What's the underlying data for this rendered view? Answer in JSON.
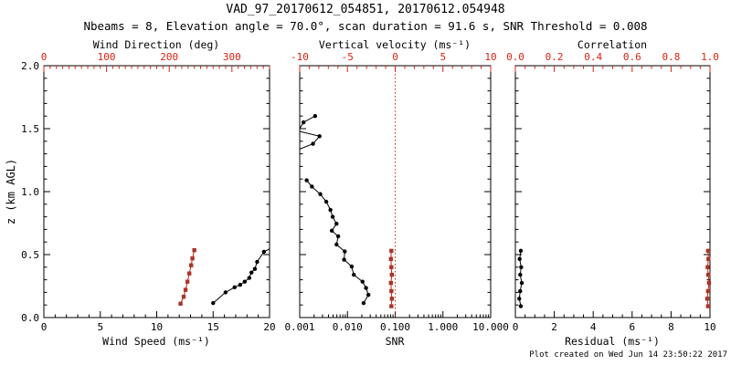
{
  "header": {
    "title": "VAD_97_20170612_054851, 20170612.054948",
    "subtitle": "Nbeams = 8, Elevation angle = 70.0°, scan duration = 91.6 s, SNR Threshold = 0.008"
  },
  "footer": {
    "created_text": "Plot created on Wed Jun 14 23:50:22 2017"
  },
  "colors": {
    "background": "#ffffff",
    "axis_black": "#000000",
    "axis_red": "#dd2211",
    "line_red": "#cc2211",
    "marker_red": "#a8352a",
    "line_black": "#000000"
  },
  "chart_data": {
    "type": "line",
    "ylabel": "z (km AGL)",
    "ylim": [
      0,
      2
    ],
    "y_majors": [
      0.0,
      0.5,
      1.0,
      1.5,
      2.0
    ],
    "y_tick_labels": [
      "0.0",
      "0.5",
      "1.0",
      "1.5",
      "2.0"
    ],
    "y_minor_step": 0.1,
    "panels": [
      {
        "name": "wind-panel",
        "bottom_axis": {
          "label": "Wind Speed (ms⁻¹)",
          "scale": "linear",
          "min": 0,
          "max": 20,
          "majors": [
            0,
            5,
            10,
            15,
            20
          ],
          "tick_labels": [
            "0",
            "5",
            "10",
            "15",
            "20"
          ],
          "minor_step": 1,
          "color": "black"
        },
        "top_axis": {
          "label": "Wind Direction (deg)",
          "scale": "linear",
          "min": 0,
          "max": 360,
          "majors": [
            0,
            100,
            200,
            300
          ],
          "tick_labels": [
            "0",
            "100",
            "200",
            "300"
          ],
          "minor_step": 10,
          "color": "red"
        },
        "series": [
          {
            "name": "wind-speed",
            "axis": "bottom",
            "color": "black",
            "marker": "circle",
            "points": [
              [
                15.0,
                0.115
              ],
              [
                16.1,
                0.2
              ],
              [
                16.9,
                0.24
              ],
              [
                17.4,
                0.26
              ],
              [
                17.8,
                0.285
              ],
              [
                18.2,
                0.315
              ],
              [
                18.4,
                0.357
              ],
              [
                18.7,
                0.386
              ],
              [
                18.9,
                0.442
              ],
              [
                19.5,
                0.522
              ],
              [
                20.0,
                0.546,
                0
              ]
            ]
          },
          {
            "name": "wind-direction",
            "axis": "top",
            "color": "red",
            "marker": "square",
            "points": [
              [
                218,
                0.11
              ],
              [
                223,
                0.165
              ],
              [
                226,
                0.22
              ],
              [
                229,
                0.285
              ],
              [
                232,
                0.35
              ],
              [
                235,
                0.415
              ],
              [
                237,
                0.47
              ],
              [
                240,
                0.535
              ]
            ]
          }
        ]
      },
      {
        "name": "snr-panel",
        "bottom_axis": {
          "label": "SNR",
          "scale": "log",
          "min": 0.001,
          "max": 10,
          "majors": [
            0.001,
            0.01,
            0.1,
            1,
            10
          ],
          "tick_labels": [
            "0.001",
            "0.010",
            "0.100",
            "1.000",
            "10.000"
          ],
          "color": "black"
        },
        "top_axis": {
          "label": "Vertical velocity (ms⁻¹)",
          "scale": "linear",
          "min": -10,
          "max": 10,
          "majors": [
            -10,
            -5,
            0,
            5,
            10
          ],
          "tick_labels": [
            "-10",
            "-5",
            "0",
            "5",
            "10"
          ],
          "minor_step": 1,
          "color": "red"
        },
        "ref_line": {
          "axis": "top",
          "value": 0,
          "style": "dotted",
          "color": "red"
        },
        "series": [
          {
            "name": "snr-upper-a",
            "axis": "bottom",
            "color": "black",
            "marker": "circle",
            "points": [
              [
                0.0021,
                1.6
              ],
              [
                0.0012,
                1.55
              ],
              [
                0.001,
                1.5,
                0
              ]
            ]
          },
          {
            "name": "snr-upper-b",
            "axis": "bottom",
            "color": "black",
            "marker": "circle",
            "points": [
              [
                0.001,
                1.478,
                0
              ],
              [
                0.0026,
                1.44
              ],
              [
                0.0019,
                1.38
              ],
              [
                0.001,
                1.338,
                0
              ]
            ]
          },
          {
            "name": "snr-profile",
            "axis": "bottom",
            "color": "black",
            "marker": "circle",
            "points": [
              [
                0.0014,
                1.09
              ],
              [
                0.0018,
                1.04
              ],
              [
                0.0027,
                0.98
              ],
              [
                0.0036,
                0.92
              ],
              [
                0.0044,
                0.855
              ],
              [
                0.0049,
                0.8
              ],
              [
                0.0059,
                0.745
              ],
              [
                0.0047,
                0.69
              ],
              [
                0.0064,
                0.645
              ],
              [
                0.0059,
                0.58
              ],
              [
                0.0088,
                0.525
              ],
              [
                0.0085,
                0.46
              ],
              [
                0.0123,
                0.405
              ],
              [
                0.0136,
                0.34
              ],
              [
                0.0207,
                0.285
              ],
              [
                0.0245,
                0.235
              ],
              [
                0.0275,
                0.18
              ],
              [
                0.0218,
                0.115
              ]
            ]
          },
          {
            "name": "vertical-velocity",
            "axis": "top",
            "color": "red",
            "marker": "square",
            "points": [
              [
                -0.4,
                0.53
              ],
              [
                -0.45,
                0.465
              ],
              [
                -0.4,
                0.4
              ],
              [
                -0.35,
                0.34
              ],
              [
                -0.45,
                0.275
              ],
              [
                -0.4,
                0.21
              ],
              [
                -0.35,
                0.15
              ],
              [
                -0.4,
                0.09
              ]
            ]
          }
        ]
      },
      {
        "name": "residual-panel",
        "bottom_axis": {
          "label": "Residual (ms⁻¹)",
          "scale": "linear",
          "min": 0,
          "max": 10,
          "majors": [
            0,
            2,
            4,
            6,
            8,
            10
          ],
          "tick_labels": [
            "0",
            "2",
            "4",
            "6",
            "8",
            "10"
          ],
          "minor_step": 0.5,
          "color": "black"
        },
        "top_axis": {
          "label": "Correlation",
          "scale": "linear",
          "min": 0,
          "max": 1,
          "majors": [
            0,
            0.2,
            0.4,
            0.6,
            0.8,
            1.0
          ],
          "tick_labels": [
            "0.0",
            "0.2",
            "0.4",
            "0.6",
            "0.8",
            "1.0"
          ],
          "minor_step": 0.05,
          "color": "red"
        },
        "series": [
          {
            "name": "residual",
            "axis": "bottom",
            "color": "black",
            "marker": "circle",
            "points": [
              [
                0.28,
                0.53
              ],
              [
                0.22,
                0.465
              ],
              [
                0.3,
                0.4
              ],
              [
                0.25,
                0.34
              ],
              [
                0.33,
                0.275
              ],
              [
                0.25,
                0.21
              ],
              [
                0.2,
                0.15
              ],
              [
                0.28,
                0.09
              ]
            ]
          },
          {
            "name": "correlation",
            "axis": "top",
            "color": "red",
            "marker": "square",
            "points": [
              [
                0.99,
                0.53
              ],
              [
                0.992,
                0.465
              ],
              [
                0.988,
                0.4
              ],
              [
                0.991,
                0.34
              ],
              [
                0.995,
                0.275
              ],
              [
                0.99,
                0.21
              ],
              [
                0.986,
                0.15
              ],
              [
                0.99,
                0.09
              ]
            ]
          }
        ]
      }
    ]
  }
}
